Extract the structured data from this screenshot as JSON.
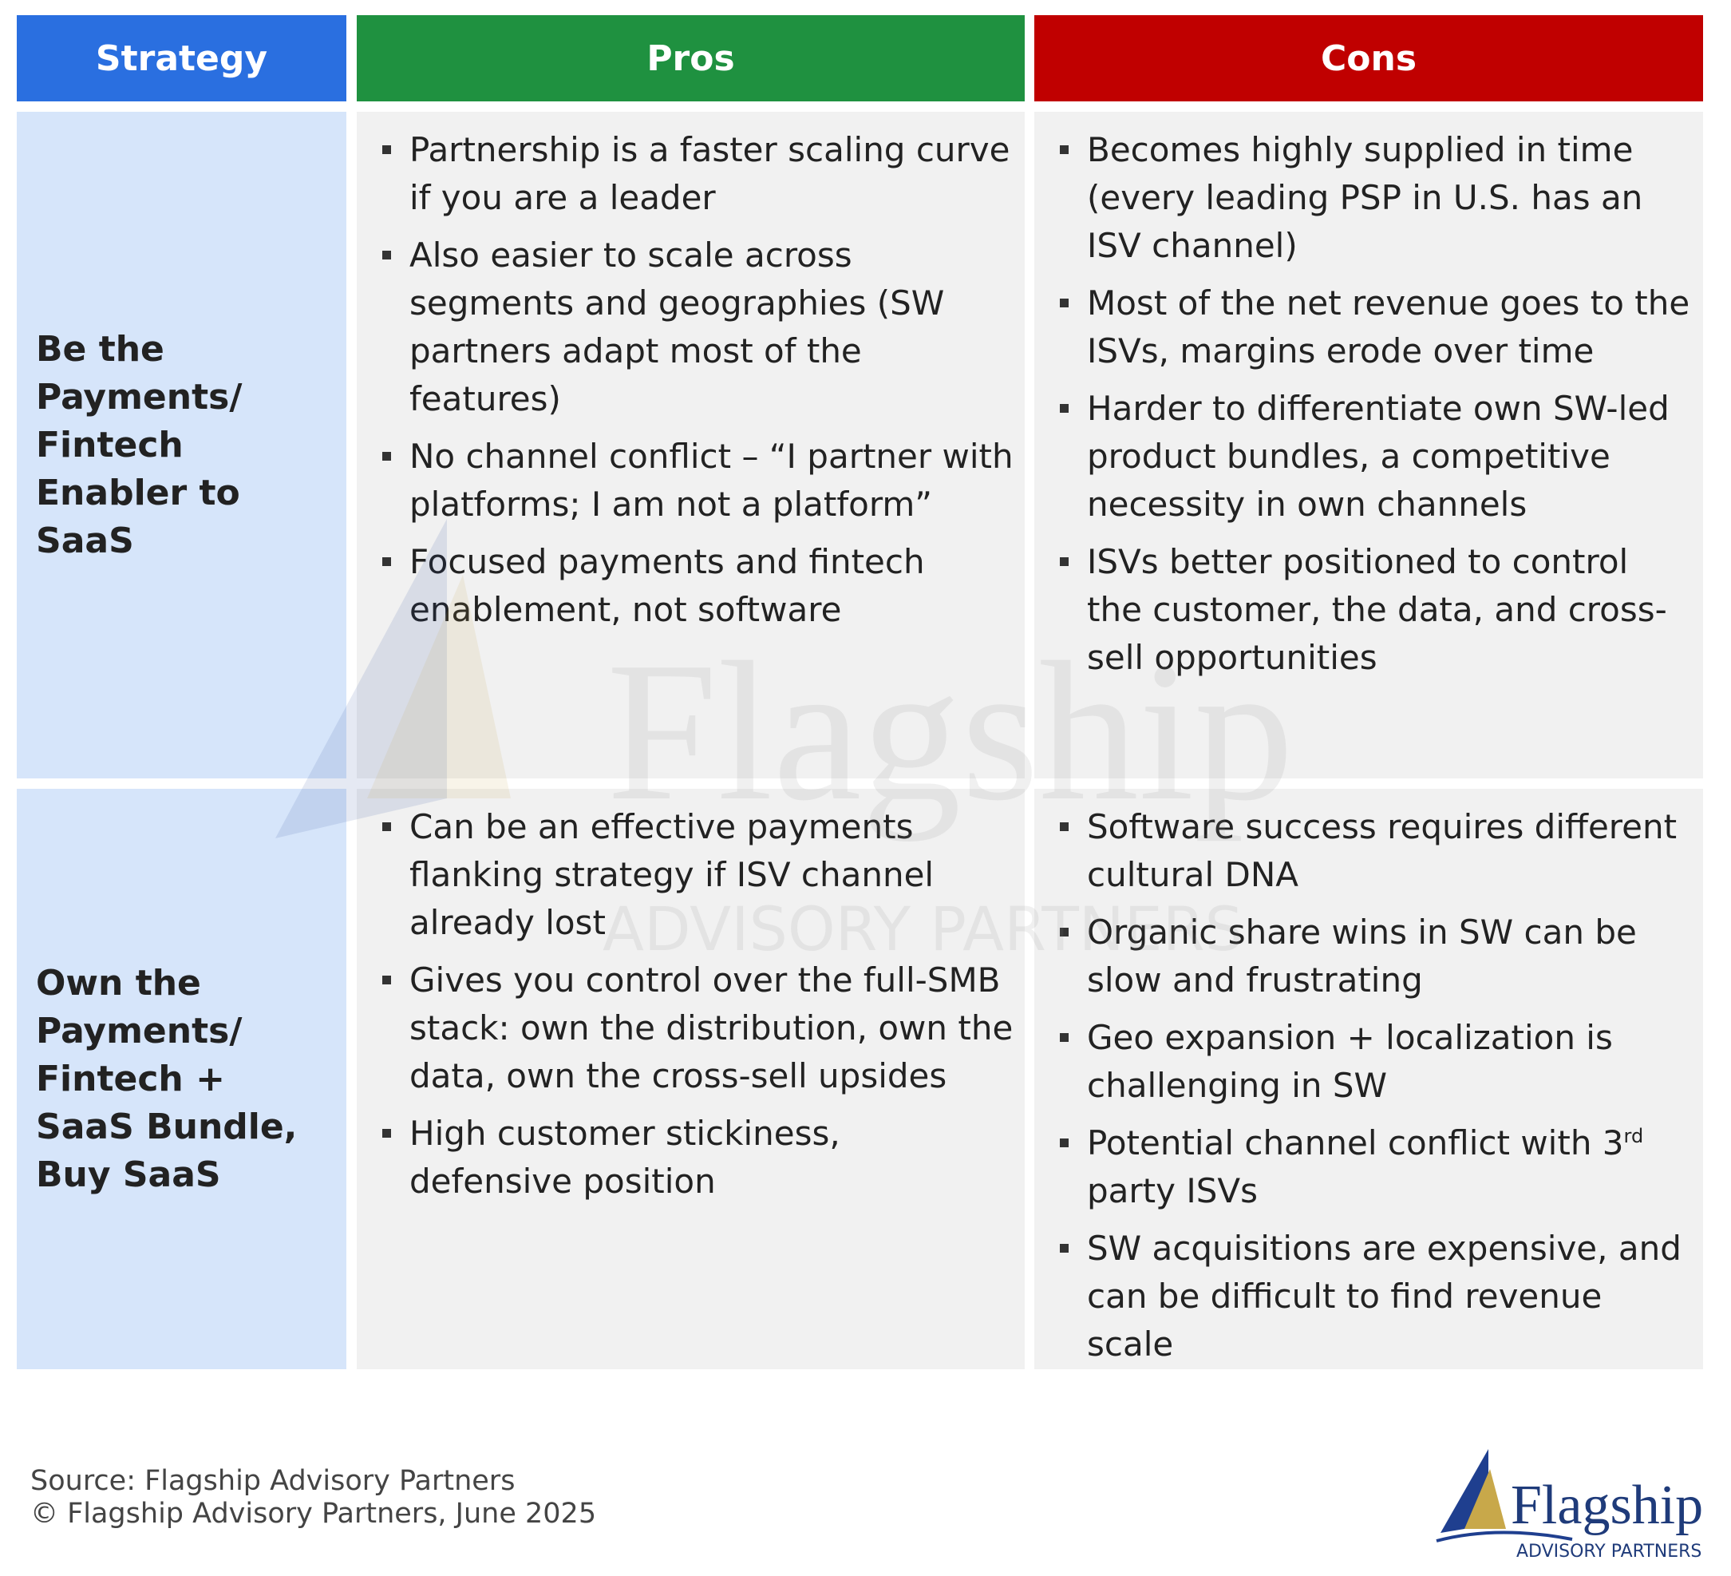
{
  "table": {
    "headers": [
      "Strategy",
      "Pros",
      "Cons"
    ],
    "rows": [
      {
        "strategy": "Be the Payments/ Fintech Enabler to SaaS",
        "pros": [
          "Partnership is a faster scaling curve if you are a leader",
          "Also easier to scale across segments and geographies (SW partners adapt most of the features)",
          "No channel conflict – “I partner with platforms; I am not a platform”",
          "Focused payments and fintech enablement, not software"
        ],
        "cons": [
          "Becomes highly supplied in time (every leading PSP in U.S. has an ISV channel)",
          "Most of the net revenue goes to the ISVs, margins erode over time",
          "Harder to differentiate own SW-led product bundles, a competitive necessity in own channels",
          "ISVs better positioned to control the customer, the data, and cross-sell opportunities"
        ]
      },
      {
        "strategy": "Own the Payments/ Fintech + SaaS Bundle, Buy SaaS",
        "pros": [
          "Can be an effective payments flanking strategy if ISV channel already lost",
          "Gives you control over the full-SMB stack: own the distribution, own the data, own the cross-sell upsides",
          "High customer stickiness, defensive position"
        ],
        "cons": [
          "Software success requires different cultural DNA",
          "Organic share wins in SW can be slow and frustrating",
          "Geo expansion + localization is challenging in SW",
          {
            "text": "Potential channel conflict with 3",
            "superscript": "rd",
            "text_after": "party ISVs"
          },
          "SW acquisitions are expensive, and can be difficult to find revenue scale"
        ]
      }
    ]
  },
  "footer": {
    "source": "Source: Flagship Advisory Partners",
    "copyright": "© Flagship Advisory Partners, June 2025"
  },
  "logo": {
    "name": "Flagship",
    "tagline": "ADVISORY PARTNERS"
  }
}
